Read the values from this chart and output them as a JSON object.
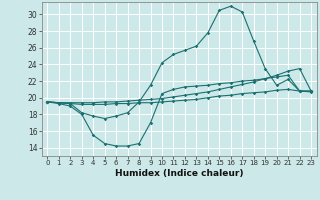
{
  "title": "",
  "xlabel": "Humidex (Indice chaleur)",
  "background_color": "#cce8e8",
  "grid_color": "#ffffff",
  "line_color": "#1a7070",
  "xlim": [
    -0.5,
    23.5
  ],
  "ylim": [
    13.0,
    31.5
  ],
  "xticks": [
    0,
    1,
    2,
    3,
    4,
    5,
    6,
    7,
    8,
    9,
    10,
    11,
    12,
    13,
    14,
    15,
    16,
    17,
    18,
    19,
    20,
    21,
    22,
    23
  ],
  "yticks": [
    14,
    16,
    18,
    20,
    22,
    24,
    26,
    28,
    30
  ],
  "series": [
    {
      "x": [
        0,
        1,
        2,
        3,
        4,
        5,
        6,
        7,
        8,
        9,
        10,
        11,
        12,
        13,
        14,
        15,
        16,
        17,
        18,
        19,
        20,
        21,
        22,
        23
      ],
      "y": [
        19.5,
        19.3,
        19.0,
        18.0,
        15.5,
        14.5,
        14.2,
        14.2,
        14.5,
        17.0,
        20.5,
        21.0,
        21.3,
        21.4,
        21.5,
        21.7,
        21.8,
        22.0,
        22.1,
        22.3,
        22.5,
        22.7,
        20.8,
        20.8
      ]
    },
    {
      "x": [
        0,
        1,
        2,
        3,
        4,
        5,
        6,
        7,
        8,
        9,
        10,
        11,
        12,
        13,
        14,
        15,
        16,
        17,
        18,
        19,
        20,
        21,
        22,
        23
      ],
      "y": [
        19.5,
        19.4,
        19.3,
        19.2,
        19.2,
        19.2,
        19.3,
        19.3,
        19.4,
        19.4,
        19.5,
        19.6,
        19.7,
        19.8,
        20.0,
        20.2,
        20.3,
        20.5,
        20.6,
        20.7,
        20.9,
        21.0,
        20.8,
        20.7
      ]
    },
    {
      "x": [
        0,
        1,
        2,
        3,
        4,
        5,
        6,
        7,
        8,
        9,
        10,
        11,
        12,
        13,
        14,
        15,
        16,
        17,
        18,
        19,
        20,
        21,
        22,
        23
      ],
      "y": [
        19.5,
        19.4,
        19.4,
        19.4,
        19.4,
        19.5,
        19.5,
        19.6,
        19.7,
        19.8,
        19.9,
        20.1,
        20.3,
        20.5,
        20.7,
        21.0,
        21.3,
        21.6,
        21.9,
        22.3,
        22.7,
        23.2,
        23.5,
        20.8
      ]
    },
    {
      "x": [
        0,
        1,
        2,
        3,
        4,
        5,
        6,
        7,
        8,
        9,
        10,
        11,
        12,
        13,
        14,
        15,
        16,
        17,
        18,
        19,
        20,
        21,
        22,
        23
      ],
      "y": [
        19.5,
        19.4,
        19.3,
        18.2,
        17.8,
        17.5,
        17.8,
        18.2,
        19.5,
        21.5,
        24.2,
        25.2,
        25.7,
        26.2,
        27.8,
        30.5,
        31.0,
        30.3,
        26.8,
        23.5,
        21.5,
        22.2,
        20.8,
        20.8
      ]
    }
  ]
}
